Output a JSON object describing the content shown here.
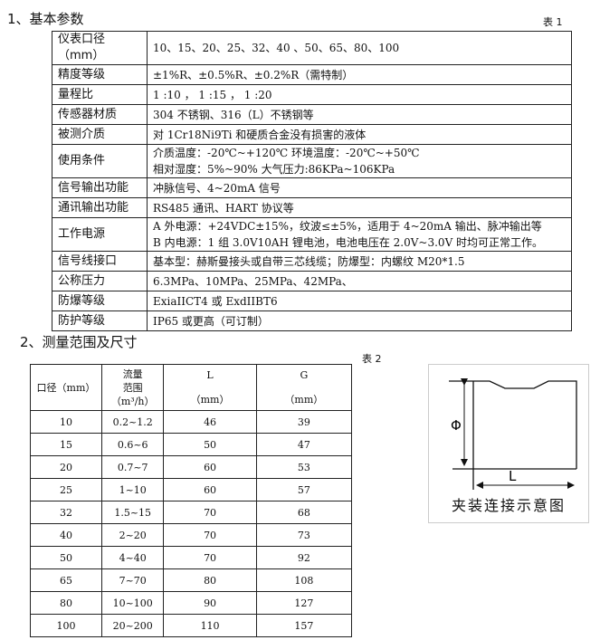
{
  "section1": {
    "title": "1、基本参数",
    "table_tag": "表 1",
    "rows": [
      {
        "label": "仪表口径（mm）",
        "lines": [
          "10、15、20、25、32、40 、50、65、80、100"
        ]
      },
      {
        "label": "精度等级",
        "lines": [
          "±1%R、±0.5%R、±0.2%R（需特制）"
        ]
      },
      {
        "label": "量程比",
        "lines": [
          "1 :10 ，  1 :15 ，  1 :20"
        ]
      },
      {
        "label": "传感器材质",
        "lines": [
          "304 不锈钢、316（L）不锈钢等"
        ]
      },
      {
        "label": "被测介质",
        "lines": [
          "对 1Cr18Ni9Ti 和硬质合金没有损害的液体"
        ]
      },
      {
        "label": "使用条件",
        "lines": [
          "介质温度：-20℃~+120℃    环境温度：-20℃~+50℃",
          "相对湿度：5%~90%          大气压力:86KPa~106KPa"
        ]
      },
      {
        "label": "信号输出功能",
        "lines": [
          "冲脉信号、4~20mA 信号"
        ]
      },
      {
        "label": "通讯输出功能",
        "lines": [
          "RS485 通讯、HART 协议等"
        ]
      },
      {
        "label": "工作电源",
        "lines": [
          "A 外电源：+24VDC±15%，纹波≤±5%，适用于 4~20mA 输出、脉冲输出等",
          "B 内电源：1 组 3.0V10AH 锂电池，电池电压在 2.0V~3.0V 时均可正常工作。"
        ]
      },
      {
        "label": "信号线接口",
        "lines": [
          "基本型：赫斯曼接头或自带三芯线缆；防爆型：内螺纹 M20*1.5"
        ]
      },
      {
        "label": "公称压力",
        "lines": [
          "6.3MPa、10MPa、25MPa、42MPa、"
        ]
      },
      {
        "label": "防爆等级",
        "lines": [
          "ExiaIICT4 或 ExdIIBT6"
        ]
      },
      {
        "label": "防护等级",
        "lines": [
          "IP65 或更高（可订制）"
        ]
      }
    ]
  },
  "section2": {
    "title": "2、测量范围及尺寸",
    "table_tag": "表 2",
    "headers": [
      [
        "口径（mm）"
      ],
      [
        "流量",
        "范围",
        "（m³/h）"
      ],
      [
        "L",
        "（mm）"
      ],
      [
        "G",
        "（mm）"
      ]
    ],
    "rows": [
      [
        "10",
        "0.2~1.2",
        "46",
        "39"
      ],
      [
        "15",
        "0.6~6",
        "50",
        "47"
      ],
      [
        "20",
        "0.7~7",
        "60",
        "53"
      ],
      [
        "25",
        "1~10",
        "60",
        "57"
      ],
      [
        "32",
        "1.5~15",
        "70",
        "68"
      ],
      [
        "40",
        "2~20",
        "70",
        "73"
      ],
      [
        "50",
        "4~40",
        "70",
        "92"
      ],
      [
        "65",
        "7~70",
        "80",
        "108"
      ],
      [
        "80",
        "10~100",
        "90",
        "127"
      ],
      [
        "100",
        "20~200",
        "110",
        "157"
      ]
    ]
  },
  "diagram": {
    "caption": "夹装连接示意图",
    "phi_label": "Φ",
    "l_label": "L"
  }
}
